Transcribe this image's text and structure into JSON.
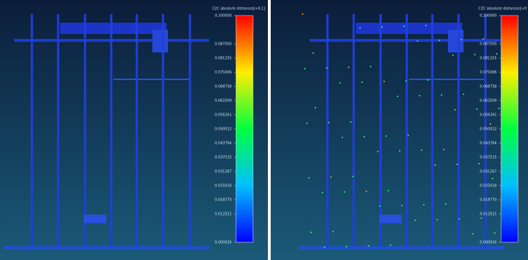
{
  "panels": [
    {
      "scale_title": "C2C absolute distances[<0.1]",
      "ticks": [
        {
          "value": 0.1,
          "label": "0.100000"
        },
        {
          "value": 0.087503,
          "label": "0.087503"
        },
        {
          "value": 0.081255,
          "label": "0.081255"
        },
        {
          "value": 0.075006,
          "label": "0.075006"
        },
        {
          "value": 0.068758,
          "label": "0.068758"
        },
        {
          "value": 0.062509,
          "label": "0.062509"
        },
        {
          "value": 0.056261,
          "label": "0.056261"
        },
        {
          "value": 0.050012,
          "label": "0.050012"
        },
        {
          "value": 0.043764,
          "label": "0.043764"
        },
        {
          "value": 0.037515,
          "label": "0.037515"
        },
        {
          "value": 0.031267,
          "label": "0.031267"
        },
        {
          "value": 0.025018,
          "label": "0.025018"
        },
        {
          "value": 0.01877,
          "label": "0.018770"
        },
        {
          "value": 0.012521,
          "label": "0.012521"
        },
        {
          "value": 2.4e-05,
          "label": "0.000024"
        }
      ]
    },
    {
      "scale_title": "C2C absolute distances[<0",
      "ticks": [
        {
          "value": 0.1,
          "label": "0.100000"
        },
        {
          "value": 0.087503,
          "label": "0.087503"
        },
        {
          "value": 0.081255,
          "label": "0.081255"
        },
        {
          "value": 0.075006,
          "label": "0.075006"
        },
        {
          "value": 0.068758,
          "label": "0.068758"
        },
        {
          "value": 0.062509,
          "label": "0.062509"
        },
        {
          "value": 0.056261,
          "label": "0.056261"
        },
        {
          "value": 0.050012,
          "label": "0.050012"
        },
        {
          "value": 0.043764,
          "label": "0.043764"
        },
        {
          "value": 0.037515,
          "label": "0.037515"
        },
        {
          "value": 0.031267,
          "label": "0.031267"
        },
        {
          "value": 0.025018,
          "label": "0.025018"
        },
        {
          "value": 0.01877,
          "label": "0.018770"
        },
        {
          "value": 0.012521,
          "label": "0.012521"
        },
        {
          "value": 2.4e-05,
          "label": "0.000024"
        }
      ]
    }
  ]
}
